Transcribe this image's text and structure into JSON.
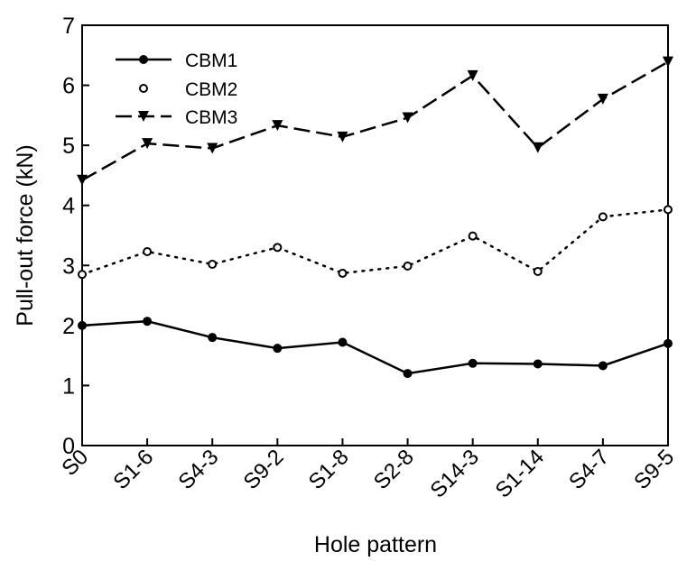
{
  "chart_data": {
    "type": "line",
    "title": "",
    "xlabel": "Hole pattern",
    "ylabel": "Pull-out force (kN)",
    "ylim": [
      0,
      7
    ],
    "yticks": [
      0,
      1,
      2,
      3,
      4,
      5,
      6,
      7
    ],
    "grid": false,
    "legend_position": "top-left",
    "categories": [
      "S0",
      "S1-6",
      "S4-3",
      "S9-2",
      "S1-8",
      "S2-8",
      "S14-3",
      "S1-14",
      "S4-7",
      "S9-5"
    ],
    "series": [
      {
        "name": "CBM1",
        "line": "solid",
        "marker": "filled-circle",
        "color": "#000000",
        "values": [
          2.0,
          2.07,
          1.8,
          1.62,
          1.72,
          1.2,
          1.37,
          1.36,
          1.33,
          1.7
        ]
      },
      {
        "name": "CBM2",
        "line": "dotted",
        "marker": "open-circle",
        "color": "#000000",
        "values": [
          2.85,
          3.23,
          3.02,
          3.3,
          2.87,
          2.99,
          3.49,
          2.9,
          3.81,
          3.93
        ]
      },
      {
        "name": "CBM3",
        "line": "dashed",
        "marker": "filled-triangle-down",
        "color": "#000000",
        "values": [
          4.42,
          5.03,
          4.95,
          5.33,
          5.14,
          5.46,
          6.16,
          4.96,
          5.77,
          6.39
        ]
      }
    ]
  }
}
